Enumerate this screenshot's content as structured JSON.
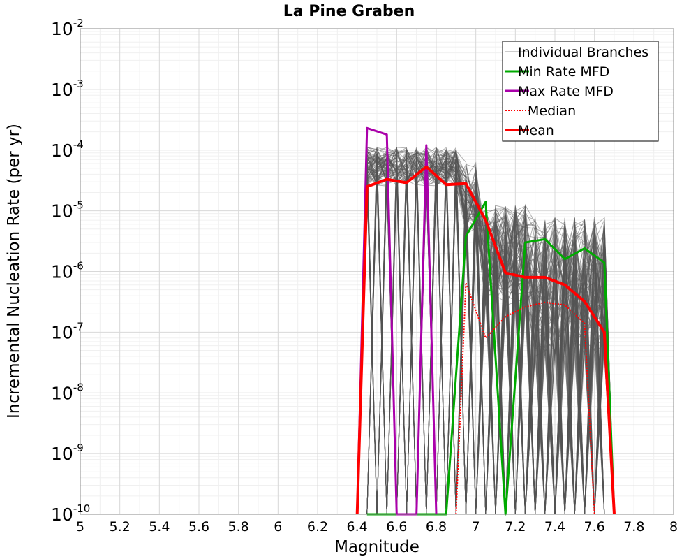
{
  "chart_data": {
    "type": "line",
    "title": "La Pine Graben",
    "xlabel": "Magnitude",
    "ylabel": "Incremental Nucleation Rate (per yr)",
    "xlim": [
      5,
      8
    ],
    "ylim": [
      1e-10,
      0.01
    ],
    "yscale": "log",
    "grid": true,
    "legend_position": "top-right",
    "x_ticks": [
      "5",
      "5.2",
      "5.4",
      "5.6",
      "5.8",
      "6",
      "6.2",
      "6.4",
      "6.6",
      "6.8",
      "7",
      "7.2",
      "7.4",
      "7.6",
      "7.8",
      "8"
    ],
    "y_ticks": [
      {
        "base": "10",
        "exp": "-10",
        "value": 1e-10
      },
      {
        "base": "10",
        "exp": "-9",
        "value": 1e-09
      },
      {
        "base": "10",
        "exp": "-8",
        "value": 1e-08
      },
      {
        "base": "10",
        "exp": "-7",
        "value": 1e-07
      },
      {
        "base": "10",
        "exp": "-6",
        "value": 1e-06
      },
      {
        "base": "10",
        "exp": "-5",
        "value": 1e-05
      },
      {
        "base": "10",
        "exp": "-4",
        "value": 0.0001
      },
      {
        "base": "10",
        "exp": "-3",
        "value": 0.001
      },
      {
        "base": "10",
        "exp": "-2",
        "value": 0.01
      }
    ],
    "series": [
      {
        "name": "Individual Branches",
        "color": "#555555",
        "style": "thin",
        "description_in_legend": true
      },
      {
        "name": "Min Rate MFD",
        "color": "#00aa00",
        "style": "solid",
        "x": [
          6.45,
          6.55,
          6.65,
          6.75,
          6.85,
          6.95,
          7.05,
          7.15,
          7.25,
          7.35,
          7.45,
          7.55,
          7.65,
          7.7
        ],
        "y": [
          1e-10,
          1e-10,
          1e-10,
          1e-10,
          1e-10,
          3.8e-06,
          1.4e-05,
          1e-10,
          3e-06,
          3.4e-06,
          1.6e-06,
          2.4e-06,
          1.4e-06,
          1e-10
        ]
      },
      {
        "name": "Max Rate MFD",
        "color": "#aa00aa",
        "style": "solid",
        "x": [
          6.4,
          6.45,
          6.55,
          6.6,
          6.7,
          6.75,
          6.8
        ],
        "y": [
          1e-10,
          0.00023,
          0.00018,
          1e-10,
          1e-10,
          0.00012,
          1e-10
        ]
      },
      {
        "name": "Median",
        "color": "#ff0000",
        "style": "dotted",
        "x": [
          6.9,
          6.95,
          7.05,
          7.15,
          7.25,
          7.35,
          7.45,
          7.55,
          7.6
        ],
        "y": [
          1e-10,
          6.5e-07,
          8e-08,
          1.8e-07,
          2.6e-07,
          3.1e-07,
          2.8e-07,
          1.4e-07,
          1e-10
        ]
      },
      {
        "name": "Mean",
        "color": "#ff0000",
        "style": "thick",
        "x": [
          6.4,
          6.45,
          6.55,
          6.65,
          6.75,
          6.85,
          6.95,
          7.05,
          7.15,
          7.25,
          7.35,
          7.45,
          7.55,
          7.65,
          7.7
        ],
        "y": [
          1e-10,
          2.5e-05,
          3.3e-05,
          2.9e-05,
          5.3e-05,
          2.7e-05,
          2.8e-05,
          7e-06,
          9.5e-07,
          8e-07,
          8e-07,
          6e-07,
          3.2e-07,
          1e-07,
          1e-10
        ]
      }
    ]
  }
}
